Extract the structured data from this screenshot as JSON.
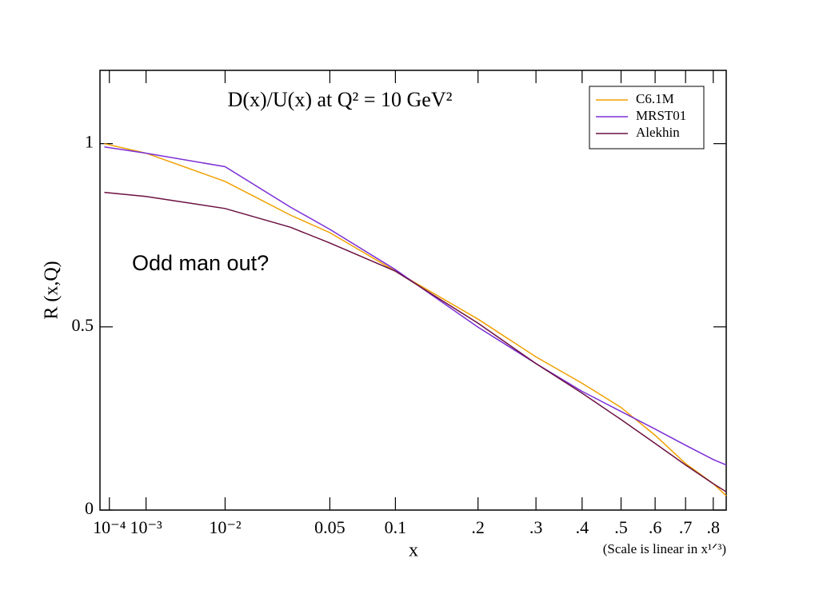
{
  "chart_data": {
    "type": "line",
    "title": "D(x)/U(x) at Q² = 10 GeV²",
    "x_label": "x",
    "x_note": "(Scale is linear in x¹ᐟ³)",
    "y_label": "R (x,Q)",
    "annotation": "Odd man out?",
    "xscale": "cbrt",
    "xlim": [
      3.5e-05,
      0.85
    ],
    "xticks": [
      {
        "value": 0.0001,
        "label": "10⁻⁴"
      },
      {
        "value": 0.001,
        "label": "10⁻³"
      },
      {
        "value": 0.01,
        "label": "10⁻²"
      },
      0.05,
      0.1,
      {
        "value": 0.2,
        "label": ".2"
      },
      {
        "value": 0.3,
        "label": ".3"
      },
      {
        "value": 0.4,
        "label": ".4"
      },
      {
        "value": 0.5,
        "label": ".5"
      },
      {
        "value": 0.6,
        "label": ".6"
      },
      {
        "value": 0.7,
        "label": ".7"
      },
      {
        "value": 0.8,
        "label": ".8"
      }
    ],
    "ylim": [
      0,
      1.2
    ],
    "yticks": [
      0,
      0.5,
      1
    ],
    "legend": "top-right",
    "x": [
      6e-05,
      0.001,
      0.01,
      0.03,
      0.05,
      0.1,
      0.2,
      0.3,
      0.4,
      0.5,
      0.6,
      0.7,
      0.8,
      0.85
    ],
    "series": [
      {
        "name": "C6.1M",
        "color": "#f0a000",
        "values": [
          1.0,
          0.974,
          0.897,
          0.805,
          0.757,
          0.652,
          0.521,
          0.418,
          0.346,
          0.28,
          0.204,
          0.127,
          0.072,
          0.039
        ]
      },
      {
        "name": "MRST01",
        "color": "#7b2fd6",
        "values": [
          0.991,
          0.974,
          0.937,
          0.827,
          0.766,
          0.656,
          0.499,
          0.4,
          0.324,
          0.269,
          0.221,
          0.177,
          0.138,
          0.123
        ]
      },
      {
        "name": "Alekhin",
        "color": "#6b1040",
        "values": [
          0.867,
          0.856,
          0.823,
          0.772,
          0.729,
          0.652,
          0.51,
          0.4,
          0.319,
          0.247,
          0.182,
          0.123,
          0.072,
          0.05
        ]
      }
    ]
  }
}
